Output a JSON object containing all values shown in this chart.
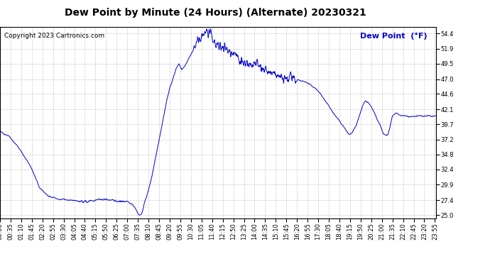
{
  "title": "Dew Point by Minute (24 Hours) (Alternate) 20230321",
  "copyright": "Copyright 2023 Cartronics.com",
  "legend_label": "Dew Point  (°F)",
  "line_color": "#0000cc",
  "legend_color": "#0000cc",
  "background_color": "#ffffff",
  "grid_color": "#bbbbbb",
  "yticks": [
    25.0,
    27.4,
    29.9,
    32.4,
    34.8,
    37.2,
    39.7,
    42.1,
    44.6,
    47.0,
    49.5,
    51.9,
    54.4
  ],
  "ylim": [
    24.5,
    55.5
  ],
  "total_minutes": 1440,
  "xtick_interval": 35,
  "title_fontsize": 10,
  "copyright_fontsize": 6.5,
  "legend_fontsize": 8,
  "tick_fontsize": 6,
  "control_points": [
    [
      0,
      38.5
    ],
    [
      30,
      37.8
    ],
    [
      60,
      36.0
    ],
    [
      100,
      33.0
    ],
    [
      130,
      29.5
    ],
    [
      160,
      28.0
    ],
    [
      200,
      27.5
    ],
    [
      240,
      27.4
    ],
    [
      280,
      27.2
    ],
    [
      310,
      27.3
    ],
    [
      330,
      27.5
    ],
    [
      350,
      27.6
    ],
    [
      360,
      27.4
    ],
    [
      380,
      27.3
    ],
    [
      400,
      27.2
    ],
    [
      415,
      27.1
    ],
    [
      425,
      27.0
    ],
    [
      435,
      26.8
    ],
    [
      445,
      26.3
    ],
    [
      450,
      25.8
    ],
    [
      455,
      25.3
    ],
    [
      460,
      25.0
    ],
    [
      463,
      25.0
    ],
    [
      465,
      25.1
    ],
    [
      468,
      25.3
    ],
    [
      472,
      26.0
    ],
    [
      480,
      27.5
    ],
    [
      490,
      29.0
    ],
    [
      500,
      31.0
    ],
    [
      510,
      33.5
    ],
    [
      520,
      36.0
    ],
    [
      530,
      38.5
    ],
    [
      540,
      41.0
    ],
    [
      550,
      43.5
    ],
    [
      560,
      45.5
    ],
    [
      570,
      47.0
    ],
    [
      580,
      48.5
    ],
    [
      590,
      49.5
    ],
    [
      595,
      49.0
    ],
    [
      600,
      48.5
    ],
    [
      605,
      48.8
    ],
    [
      615,
      49.5
    ],
    [
      625,
      50.5
    ],
    [
      635,
      51.5
    ],
    [
      645,
      52.5
    ],
    [
      655,
      53.0
    ],
    [
      665,
      53.8
    ],
    [
      675,
      54.5
    ],
    [
      685,
      54.8
    ],
    [
      695,
      54.0
    ],
    [
      705,
      53.0
    ],
    [
      715,
      52.5
    ],
    [
      725,
      52.0
    ],
    [
      735,
      52.5
    ],
    [
      745,
      52.0
    ],
    [
      755,
      51.5
    ],
    [
      765,
      51.0
    ],
    [
      775,
      51.5
    ],
    [
      785,
      50.5
    ],
    [
      795,
      50.0
    ],
    [
      810,
      49.5
    ],
    [
      825,
      49.0
    ],
    [
      840,
      49.5
    ],
    [
      855,
      49.0
    ],
    [
      870,
      48.5
    ],
    [
      885,
      48.0
    ],
    [
      900,
      47.8
    ],
    [
      915,
      47.5
    ],
    [
      930,
      47.2
    ],
    [
      945,
      47.0
    ],
    [
      960,
      47.2
    ],
    [
      975,
      47.0
    ],
    [
      990,
      46.8
    ],
    [
      1005,
      46.5
    ],
    [
      1020,
      46.2
    ],
    [
      1040,
      45.5
    ],
    [
      1060,
      44.5
    ],
    [
      1080,
      43.0
    ],
    [
      1100,
      41.5
    ],
    [
      1115,
      40.5
    ],
    [
      1130,
      39.5
    ],
    [
      1145,
      38.5
    ],
    [
      1155,
      38.0
    ],
    [
      1165,
      38.5
    ],
    [
      1175,
      39.5
    ],
    [
      1185,
      41.0
    ],
    [
      1195,
      42.5
    ],
    [
      1205,
      43.5
    ],
    [
      1215,
      43.2
    ],
    [
      1225,
      42.5
    ],
    [
      1235,
      41.5
    ],
    [
      1245,
      40.5
    ],
    [
      1255,
      39.5
    ],
    [
      1260,
      38.8
    ],
    [
      1265,
      38.2
    ],
    [
      1270,
      38.0
    ],
    [
      1275,
      37.8
    ],
    [
      1280,
      38.0
    ],
    [
      1285,
      39.0
    ],
    [
      1295,
      41.0
    ],
    [
      1305,
      41.5
    ],
    [
      1315,
      41.3
    ],
    [
      1325,
      41.1
    ],
    [
      1350,
      41.0
    ],
    [
      1380,
      41.0
    ],
    [
      1410,
      41.0
    ],
    [
      1439,
      41.0
    ]
  ]
}
